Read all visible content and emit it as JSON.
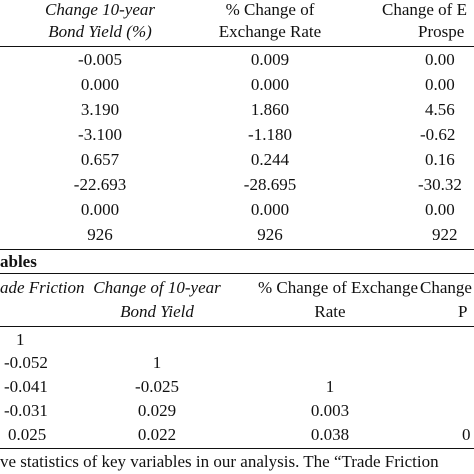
{
  "table_top": {
    "headers": [
      {
        "line1": "Change 10-year",
        "line2": "Bond Yield (%)",
        "italic": true
      },
      {
        "line1": "% Change of",
        "line2": "Exchange Rate",
        "italic": false
      },
      {
        "line1": "Change of E",
        "line2": "Prospe",
        "italic": false
      }
    ],
    "rows": [
      [
        "-0.005",
        "0.009",
        "0.00"
      ],
      [
        "0.000",
        "0.000",
        "0.00"
      ],
      [
        "3.190",
        "1.860",
        "4.56"
      ],
      [
        "-3.100",
        "-1.180",
        "-0.62"
      ],
      [
        "0.657",
        "0.244",
        "0.16"
      ],
      [
        "-22.693",
        "-28.695",
        "-30.32"
      ],
      [
        "0.000",
        "0.000",
        "0.00"
      ],
      [
        "926",
        "926",
        "922"
      ]
    ]
  },
  "section_title": "ables",
  "table_bottom": {
    "headers": [
      {
        "line1": "ade Friction",
        "line2": "",
        "italic": true
      },
      {
        "line1": "Change of 10-year",
        "line2": "Bond Yield",
        "italic": true
      },
      {
        "line1": "% Change of Exchange",
        "line2": "Rate",
        "italic": false
      },
      {
        "line1": "Change",
        "line2": "P",
        "italic": false
      }
    ],
    "rows": [
      [
        "1",
        "",
        "",
        ""
      ],
      [
        "-0.052",
        "1",
        "",
        ""
      ],
      [
        "-0.041",
        "-0.025",
        "1",
        ""
      ],
      [
        "-0.031",
        "0.029",
        "0.003",
        ""
      ],
      [
        "0.025",
        "0.022",
        "0.038",
        "0"
      ]
    ]
  },
  "caption": "ve statistics of key variables in our analysis. The “Trade Friction"
}
